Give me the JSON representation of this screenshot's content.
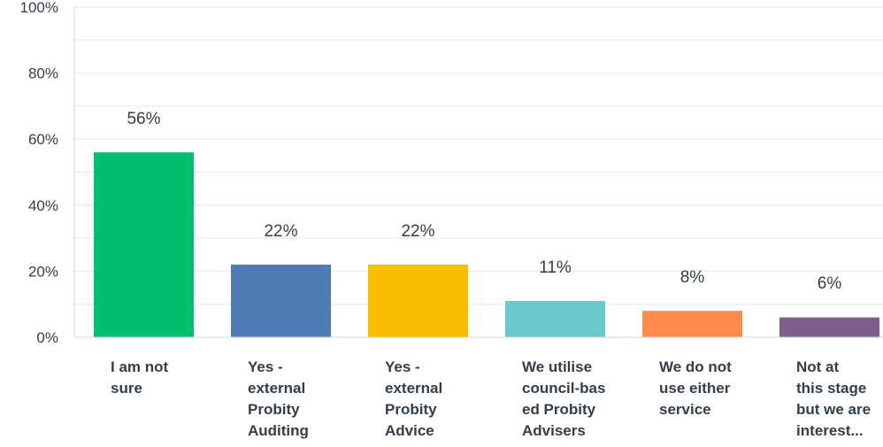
{
  "chart_data": {
    "type": "bar",
    "categories": [
      [
        "I am not",
        "sure"
      ],
      [
        "Yes -",
        "external",
        "Probity",
        "Auditing"
      ],
      [
        "Yes -",
        "external",
        "Probity",
        "Advice"
      ],
      [
        "We utilise",
        "council-bas",
        "ed Probity",
        "Advisers"
      ],
      [
        "We do not",
        "use either",
        "service"
      ],
      [
        "Not at",
        "this stage",
        "but we are",
        "interest..."
      ]
    ],
    "values": [
      56,
      22,
      22,
      11,
      8,
      6
    ],
    "value_labels": [
      "56%",
      "22%",
      "22%",
      "11%",
      "8%",
      "6%"
    ],
    "colors": [
      "#00bf6f",
      "#507cb6",
      "#f9be00",
      "#6bc8cd",
      "#ff8b4f",
      "#7f5e8e"
    ],
    "ylim": [
      0,
      100
    ],
    "yticks": [
      0,
      20,
      40,
      60,
      80,
      100
    ],
    "ytick_labels": [
      "0%",
      "20%",
      "40%",
      "60%",
      "80%",
      "100%"
    ],
    "grid": true,
    "legend": "none"
  }
}
